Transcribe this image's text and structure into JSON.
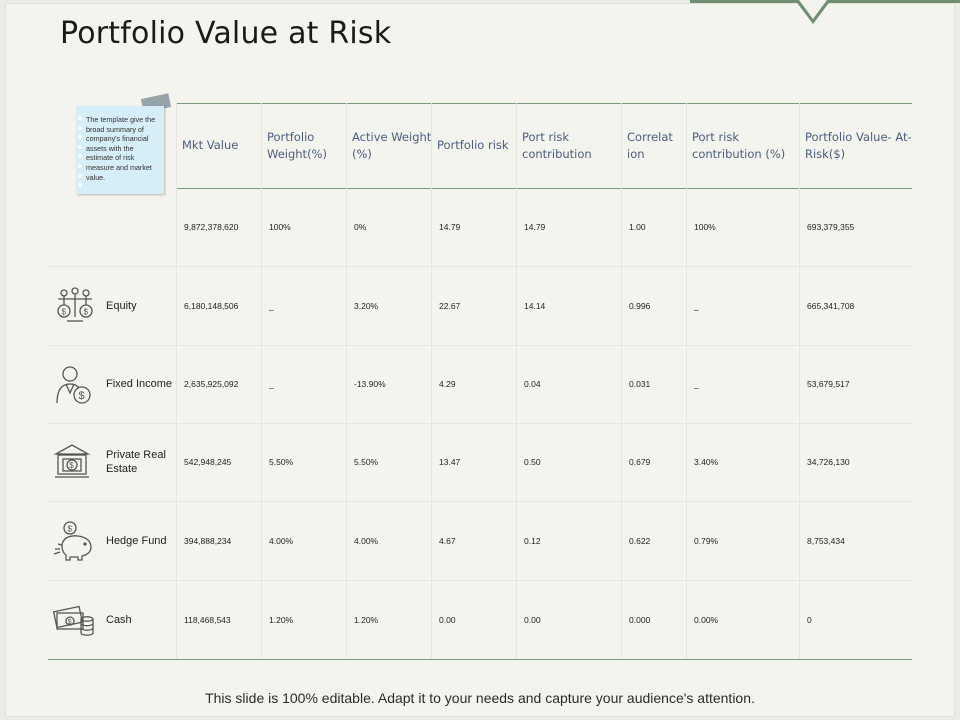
{
  "title": "Portfolio Value at Risk",
  "note": {
    "text": "The template give the broad summary of company's financial assets with the estimate of risk measure and market value."
  },
  "table": {
    "headers": [
      "Mkt Value",
      "Portfolio Weight(%)",
      "Active Weight (%)",
      "Portfolio risk",
      "Port risk contribution",
      "Correlat ion",
      "Port risk contribution (%)",
      "Portfolio Value- At- Risk($)"
    ],
    "rows": [
      {
        "label": "",
        "icon": "",
        "cells": [
          "9,872,378,620",
          "100%",
          "0%",
          "14.79",
          "14.79",
          "1.00",
          "100%",
          "693,379,355"
        ]
      },
      {
        "label": "Equity",
        "icon": "balance-scale-dollar-icon",
        "cells": [
          "6,180,148,506",
          "_",
          "3.20%",
          "22.67",
          "14.14",
          "0.996",
          "_",
          "665,341,708"
        ]
      },
      {
        "label": "Fixed Income",
        "icon": "person-dollar-icon",
        "cells": [
          "2,635,925,092",
          "_",
          "-13.90%",
          "4.29",
          "0.04",
          "0.031",
          "_",
          "53,679,517"
        ]
      },
      {
        "label": "Private Real Estate",
        "icon": "bank-building-icon",
        "cells": [
          "542,948,245",
          "5.50%",
          "5.50%",
          "13.47",
          "0.50",
          "0.679",
          "3.40%",
          "34,726,130"
        ]
      },
      {
        "label": "Hedge Fund",
        "icon": "piggy-bank-icon",
        "cells": [
          "394,888,234",
          "4.00%",
          "4.00%",
          "4.67",
          "0.12",
          "0.622",
          "0.79%",
          "8,753,434"
        ]
      },
      {
        "label": "Cash",
        "icon": "cash-coins-icon",
        "cells": [
          "118,468,543",
          "1.20%",
          "1.20%",
          "0.00",
          "0.00",
          "0.000",
          "0.00%",
          "0"
        ]
      }
    ]
  },
  "footer": "This slide is 100% editable. Adapt it to your needs and capture your audience's attention."
}
